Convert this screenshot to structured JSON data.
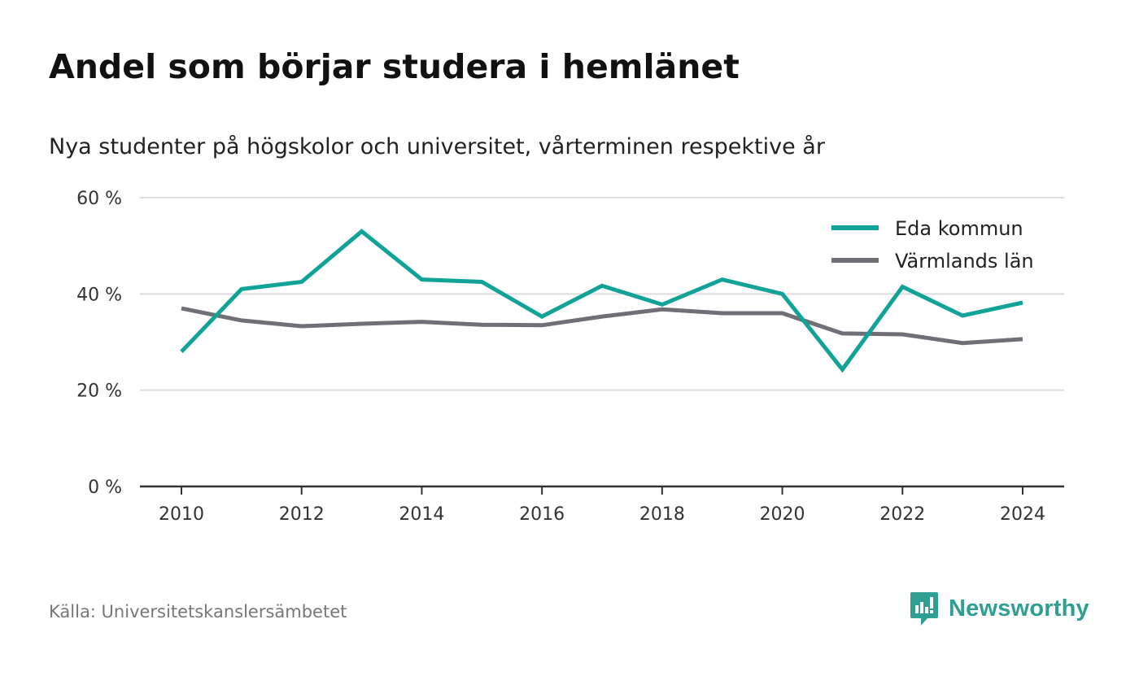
{
  "header": {
    "title": "Andel som börjar studera i hemlänet",
    "subtitle": "Nya studenter på högskolor och universitet, vårterminen respektive år"
  },
  "footer": {
    "source": "Källa: Universitetskanslersämbetet",
    "brand": "Newsworthy",
    "brand_icon": "newsworthy-logo-icon",
    "brand_color": "#2f9e93"
  },
  "chart_data": {
    "type": "line",
    "title": "Andel som börjar studera i hemlänet",
    "subtitle": "Nya studenter på högskolor och universitet, vårterminen respektive år",
    "xlabel": "",
    "ylabel": "",
    "x": [
      2010,
      2011,
      2012,
      2013,
      2014,
      2015,
      2016,
      2017,
      2018,
      2019,
      2020,
      2021,
      2022,
      2023,
      2024
    ],
    "x_ticks": [
      "2010",
      "2012",
      "2014",
      "2016",
      "2018",
      "2020",
      "2022",
      "2024"
    ],
    "y_ticks": [
      "0 %",
      "20 %",
      "40 %",
      "60 %"
    ],
    "ylim": [
      0,
      60
    ],
    "grid": true,
    "legend_position": "top-right",
    "series": [
      {
        "name": "Eda kommun",
        "color": "#12a398",
        "values": [
          28.0,
          41.0,
          42.5,
          53.0,
          43.0,
          42.5,
          35.3,
          41.7,
          37.8,
          43.0,
          40.0,
          24.3,
          41.5,
          35.5,
          38.2
        ]
      },
      {
        "name": "Värmlands län",
        "color": "#6f6f77",
        "values": [
          37.0,
          34.5,
          33.3,
          33.8,
          34.2,
          33.6,
          33.5,
          35.3,
          36.8,
          36.0,
          36.0,
          31.8,
          31.6,
          29.8,
          30.6
        ]
      }
    ]
  }
}
